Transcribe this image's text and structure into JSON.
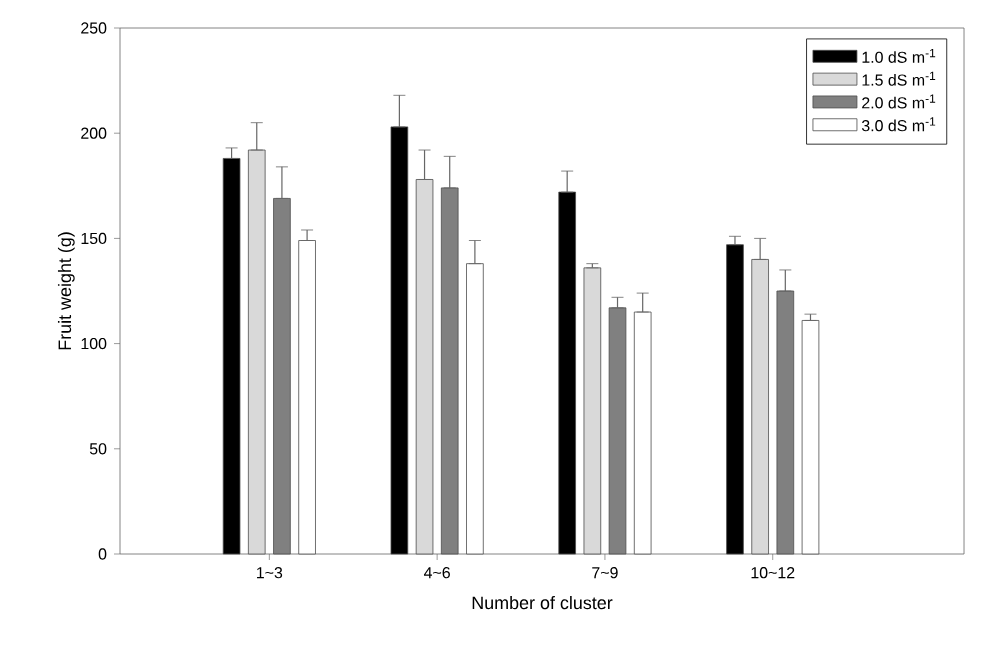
{
  "chart_data": {
    "type": "bar",
    "xlabel": "Number of cluster",
    "ylabel": "Fruit weight (g)",
    "categories": [
      "1~3",
      "4~6",
      "7~9",
      "10~12"
    ],
    "series": [
      {
        "name": "1.0 dS m$^{-1}$",
        "color": "#000000",
        "values": [
          188,
          203,
          172,
          147
        ],
        "errors": [
          [
            188,
            193
          ],
          [
            203,
            218
          ],
          [
            172,
            182
          ],
          [
            147,
            151
          ]
        ]
      },
      {
        "name": "1.5 dS m$^{-1}$",
        "color": "#d9d9d9",
        "values": [
          192,
          178,
          136,
          140
        ],
        "errors": [
          [
            192,
            205
          ],
          [
            178,
            192
          ],
          [
            136,
            138
          ],
          [
            140,
            150
          ]
        ]
      },
      {
        "name": "2.0 dS m$^{-1}$",
        "color": "#808080",
        "values": [
          169,
          174,
          117,
          125
        ],
        "errors": [
          [
            169,
            184
          ],
          [
            174,
            189
          ],
          [
            117,
            122
          ],
          [
            125,
            135
          ]
        ]
      },
      {
        "name": "3.0 dS m$^{-1}$",
        "color": "#ffffff",
        "values": [
          149,
          138,
          115,
          111
        ],
        "errors": [
          [
            149,
            154
          ],
          [
            138,
            149
          ],
          [
            115,
            124
          ],
          [
            111,
            114
          ]
        ]
      }
    ],
    "ylim": [
      0,
      250
    ],
    "yticks": [
      0,
      50,
      100,
      150,
      200,
      250
    ],
    "legend": "top right"
  }
}
